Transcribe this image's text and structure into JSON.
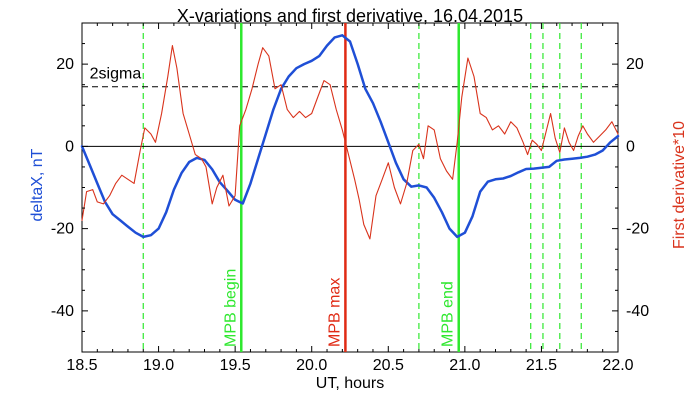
{
  "chart_data": {
    "type": "line",
    "title": "X-variations and first derivative, 16.04.2015",
    "xlabel": "UT, hours",
    "ylabel_left": "deltaX, nT",
    "ylabel_right": "First derivative*10",
    "xlim": [
      18.5,
      22.0
    ],
    "ylim": [
      -50,
      30
    ],
    "xticks": [
      "18.5",
      "19.0",
      "19.5",
      "20.0",
      "20.5",
      "21.0",
      "21.5",
      "22.0"
    ],
    "yticks_left": [
      "20",
      "0",
      "-20",
      "-40"
    ],
    "yticks_right": [
      "20",
      "0",
      "-20",
      "-40"
    ],
    "grid": false,
    "colors": {
      "deltax": "#1f4fd6",
      "derivative": "#d9331c",
      "mpb_lines": "#2ee82e",
      "mpb_max": "#e02a14",
      "axis": "#000000",
      "threshold": "#000000"
    },
    "series": [
      {
        "name": "deltaX",
        "role": "deltax",
        "points": [
          [
            18.5,
            0.0
          ],
          [
            18.55,
            -4.5
          ],
          [
            18.6,
            -9.0
          ],
          [
            18.65,
            -13.5
          ],
          [
            18.7,
            -16.5
          ],
          [
            18.75,
            -18.0
          ],
          [
            18.8,
            -19.5
          ],
          [
            18.85,
            -21.0
          ],
          [
            18.9,
            -22.0
          ],
          [
            18.95,
            -21.6
          ],
          [
            19.0,
            -20.0
          ],
          [
            19.05,
            -16.0
          ],
          [
            19.1,
            -10.5
          ],
          [
            19.15,
            -6.5
          ],
          [
            19.2,
            -3.8
          ],
          [
            19.25,
            -2.8
          ],
          [
            19.3,
            -3.3
          ],
          [
            19.35,
            -5.6
          ],
          [
            19.4,
            -8.7
          ],
          [
            19.45,
            -10.8
          ],
          [
            19.5,
            -13.0
          ],
          [
            19.55,
            -13.9
          ],
          [
            19.6,
            -9.0
          ],
          [
            19.65,
            -3.0
          ],
          [
            19.7,
            3.0
          ],
          [
            19.75,
            9.0
          ],
          [
            19.8,
            14.0
          ],
          [
            19.85,
            17.0
          ],
          [
            19.9,
            19.0
          ],
          [
            19.95,
            20.0
          ],
          [
            20.0,
            20.8
          ],
          [
            20.05,
            22.0
          ],
          [
            20.1,
            24.5
          ],
          [
            20.15,
            26.5
          ],
          [
            20.2,
            27.0
          ],
          [
            20.25,
            25.5
          ],
          [
            20.3,
            20.0
          ],
          [
            20.35,
            14.0
          ],
          [
            20.4,
            10.5
          ],
          [
            20.45,
            6.0
          ],
          [
            20.5,
            1.0
          ],
          [
            20.55,
            -4.0
          ],
          [
            20.6,
            -8.0
          ],
          [
            20.65,
            -9.8
          ],
          [
            20.7,
            -9.5
          ],
          [
            20.75,
            -10.0
          ],
          [
            20.8,
            -12.5
          ],
          [
            20.85,
            -16.0
          ],
          [
            20.9,
            -20.0
          ],
          [
            20.95,
            -22.0
          ],
          [
            21.0,
            -21.0
          ],
          [
            21.05,
            -17.0
          ],
          [
            21.1,
            -11.0
          ],
          [
            21.15,
            -8.6
          ],
          [
            21.2,
            -8.0
          ],
          [
            21.25,
            -7.8
          ],
          [
            21.3,
            -7.2
          ],
          [
            21.35,
            -6.3
          ],
          [
            21.4,
            -5.5
          ],
          [
            21.45,
            -5.4
          ],
          [
            21.5,
            -5.2
          ],
          [
            21.55,
            -5.0
          ],
          [
            21.6,
            -3.5
          ],
          [
            21.65,
            -3.2
          ],
          [
            21.7,
            -3.0
          ],
          [
            21.75,
            -2.8
          ],
          [
            21.8,
            -2.5
          ],
          [
            21.85,
            -2.0
          ],
          [
            21.9,
            -1.0
          ],
          [
            21.95,
            1.0
          ],
          [
            22.0,
            2.5
          ]
        ]
      },
      {
        "name": "First derivative*10",
        "role": "derivative",
        "points": [
          [
            18.5,
            -18.0
          ],
          [
            18.53,
            -11.0
          ],
          [
            18.57,
            -10.5
          ],
          [
            18.6,
            -13.5
          ],
          [
            18.64,
            -14.0
          ],
          [
            18.68,
            -12.0
          ],
          [
            18.72,
            -9.0
          ],
          [
            18.76,
            -7.0
          ],
          [
            18.8,
            -8.0
          ],
          [
            18.84,
            -9.0
          ],
          [
            18.88,
            -1.0
          ],
          [
            18.91,
            4.5
          ],
          [
            18.95,
            3.0
          ],
          [
            18.98,
            1.0
          ],
          [
            19.02,
            8.0
          ],
          [
            19.06,
            17.0
          ],
          [
            19.09,
            24.5
          ],
          [
            19.12,
            19.0
          ],
          [
            19.16,
            8.0
          ],
          [
            19.2,
            3.0
          ],
          [
            19.24,
            -2.0
          ],
          [
            19.28,
            -3.0
          ],
          [
            19.31,
            -5.0
          ],
          [
            19.35,
            -14.0
          ],
          [
            19.38,
            -10.0
          ],
          [
            19.42,
            -7.0
          ],
          [
            19.46,
            -14.5
          ],
          [
            19.5,
            -12.0
          ],
          [
            19.53,
            5.0
          ],
          [
            19.57,
            9.0
          ],
          [
            19.61,
            14.0
          ],
          [
            19.65,
            20.0
          ],
          [
            19.68,
            24.0
          ],
          [
            19.72,
            22.0
          ],
          [
            19.76,
            14.0
          ],
          [
            19.8,
            15.0
          ],
          [
            19.84,
            9.0
          ],
          [
            19.88,
            7.0
          ],
          [
            19.92,
            8.5
          ],
          [
            19.96,
            7.0
          ],
          [
            20.0,
            8.0
          ],
          [
            20.04,
            12.0
          ],
          [
            20.08,
            16.0
          ],
          [
            20.12,
            15.0
          ],
          [
            20.16,
            9.0
          ],
          [
            20.2,
            4.0
          ],
          [
            20.24,
            -2.0
          ],
          [
            20.28,
            -8.0
          ],
          [
            20.31,
            -13.0
          ],
          [
            20.34,
            -19.0
          ],
          [
            20.38,
            -22.5
          ],
          [
            20.42,
            -12.0
          ],
          [
            20.46,
            -8.0
          ],
          [
            20.5,
            -4.0
          ],
          [
            20.54,
            -10.0
          ],
          [
            20.58,
            -14.0
          ],
          [
            20.62,
            -9.0
          ],
          [
            20.66,
            -1.0
          ],
          [
            20.7,
            0.5
          ],
          [
            20.73,
            -3.0
          ],
          [
            20.76,
            5.0
          ],
          [
            20.8,
            4.0
          ],
          [
            20.84,
            -3.0
          ],
          [
            20.88,
            -6.0
          ],
          [
            20.92,
            -8.0
          ],
          [
            20.95,
            1.0
          ],
          [
            20.98,
            12.0
          ],
          [
            21.02,
            21.5
          ],
          [
            21.06,
            17.0
          ],
          [
            21.1,
            8.0
          ],
          [
            21.14,
            7.0
          ],
          [
            21.18,
            4.0
          ],
          [
            21.22,
            5.0
          ],
          [
            21.26,
            3.0
          ],
          [
            21.3,
            6.0
          ],
          [
            21.34,
            4.5
          ],
          [
            21.38,
            1.0
          ],
          [
            21.41,
            -2.0
          ],
          [
            21.44,
            1.5
          ],
          [
            21.47,
            0.5
          ],
          [
            21.5,
            -1.0
          ],
          [
            21.53,
            3.5
          ],
          [
            21.56,
            8.0
          ],
          [
            21.59,
            2.0
          ],
          [
            21.62,
            -1.5
          ],
          [
            21.65,
            4.5
          ],
          [
            21.68,
            1.0
          ],
          [
            21.71,
            -1.0
          ],
          [
            21.74,
            2.5
          ],
          [
            21.77,
            5.0
          ],
          [
            21.8,
            3.0
          ],
          [
            21.84,
            1.0
          ],
          [
            21.88,
            2.5
          ],
          [
            21.92,
            4.0
          ],
          [
            21.96,
            6.0
          ],
          [
            22.0,
            3.0
          ]
        ]
      }
    ],
    "threshold": {
      "label": "2sigma",
      "value": 14.5
    },
    "zero_line": 0,
    "vertical_dashed_x": [
      18.9,
      20.7,
      21.43,
      21.51,
      21.62,
      21.76
    ],
    "vertical_lines": [
      {
        "x": 19.54,
        "label": "MPB begin",
        "role": "mpb"
      },
      {
        "x": 20.22,
        "label": "MPB max",
        "role": "mpb_max"
      },
      {
        "x": 20.96,
        "label": "MPB end",
        "role": "mpb"
      }
    ]
  }
}
